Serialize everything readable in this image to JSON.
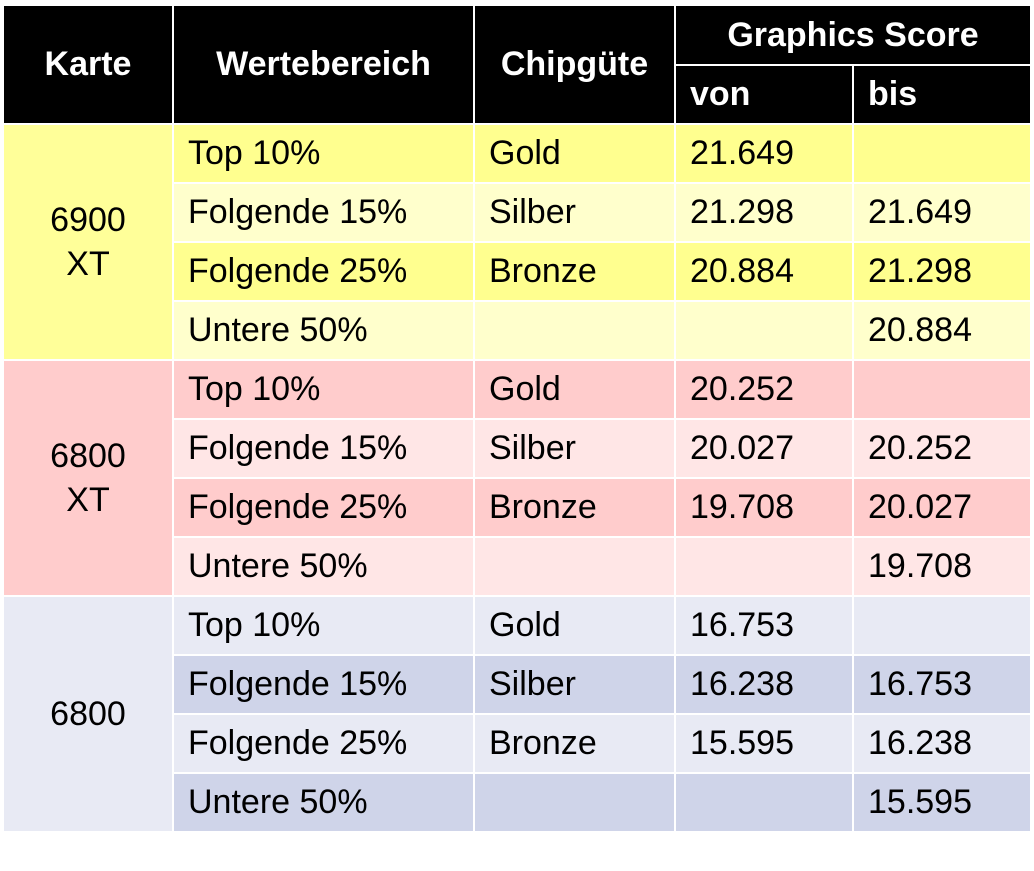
{
  "header": {
    "karte": "Karte",
    "wertebereich": "Wertebereich",
    "chipguete": "Chipgüte",
    "graphics_score": "Graphics Score",
    "von": "von",
    "bis": "bis"
  },
  "colors": {
    "header_bg": "#000000",
    "header_text": "#ffffff",
    "yellow_card": "#ffff99",
    "yellow_strong": "#ffff8f",
    "yellow_light": "#ffffcc",
    "red_card": "#ffcccc",
    "red_strong": "#ffcccc",
    "red_light": "#ffe6e6",
    "blue_card": "#e8eaf4",
    "blue_strong": "#e8eaf4",
    "blue_light": "#cfd4e9"
  },
  "groups": [
    {
      "card_line1": "6900",
      "card_line2": "XT",
      "rows": [
        {
          "range": "Top 10%",
          "grade": "Gold",
          "von": "21.649",
          "bis": ""
        },
        {
          "range": "Folgende 15%",
          "grade": "Silber",
          "von": "21.298",
          "bis": "21.649"
        },
        {
          "range": "Folgende 25%",
          "grade": "Bronze",
          "von": "20.884",
          "bis": "21.298"
        },
        {
          "range": "Untere 50%",
          "grade": "",
          "von": "",
          "bis": "20.884"
        }
      ]
    },
    {
      "card_line1": "6800",
      "card_line2": "XT",
      "rows": [
        {
          "range": "Top 10%",
          "grade": "Gold",
          "von": "20.252",
          "bis": ""
        },
        {
          "range": "Folgende 15%",
          "grade": "Silber",
          "von": "20.027",
          "bis": "20.252"
        },
        {
          "range": "Folgende 25%",
          "grade": "Bronze",
          "von": "19.708",
          "bis": "20.027"
        },
        {
          "range": "Untere 50%",
          "grade": "",
          "von": "",
          "bis": "19.708"
        }
      ]
    },
    {
      "card_line1": "6800",
      "card_line2": "",
      "rows": [
        {
          "range": "Top 10%",
          "grade": "Gold",
          "von": "16.753",
          "bis": ""
        },
        {
          "range": "Folgende 15%",
          "grade": "Silber",
          "von": "16.238",
          "bis": "16.753"
        },
        {
          "range": "Folgende 25%",
          "grade": "Bronze",
          "von": "15.595",
          "bis": "16.238"
        },
        {
          "range": "Untere 50%",
          "grade": "",
          "von": "",
          "bis": "15.595"
        }
      ]
    }
  ]
}
